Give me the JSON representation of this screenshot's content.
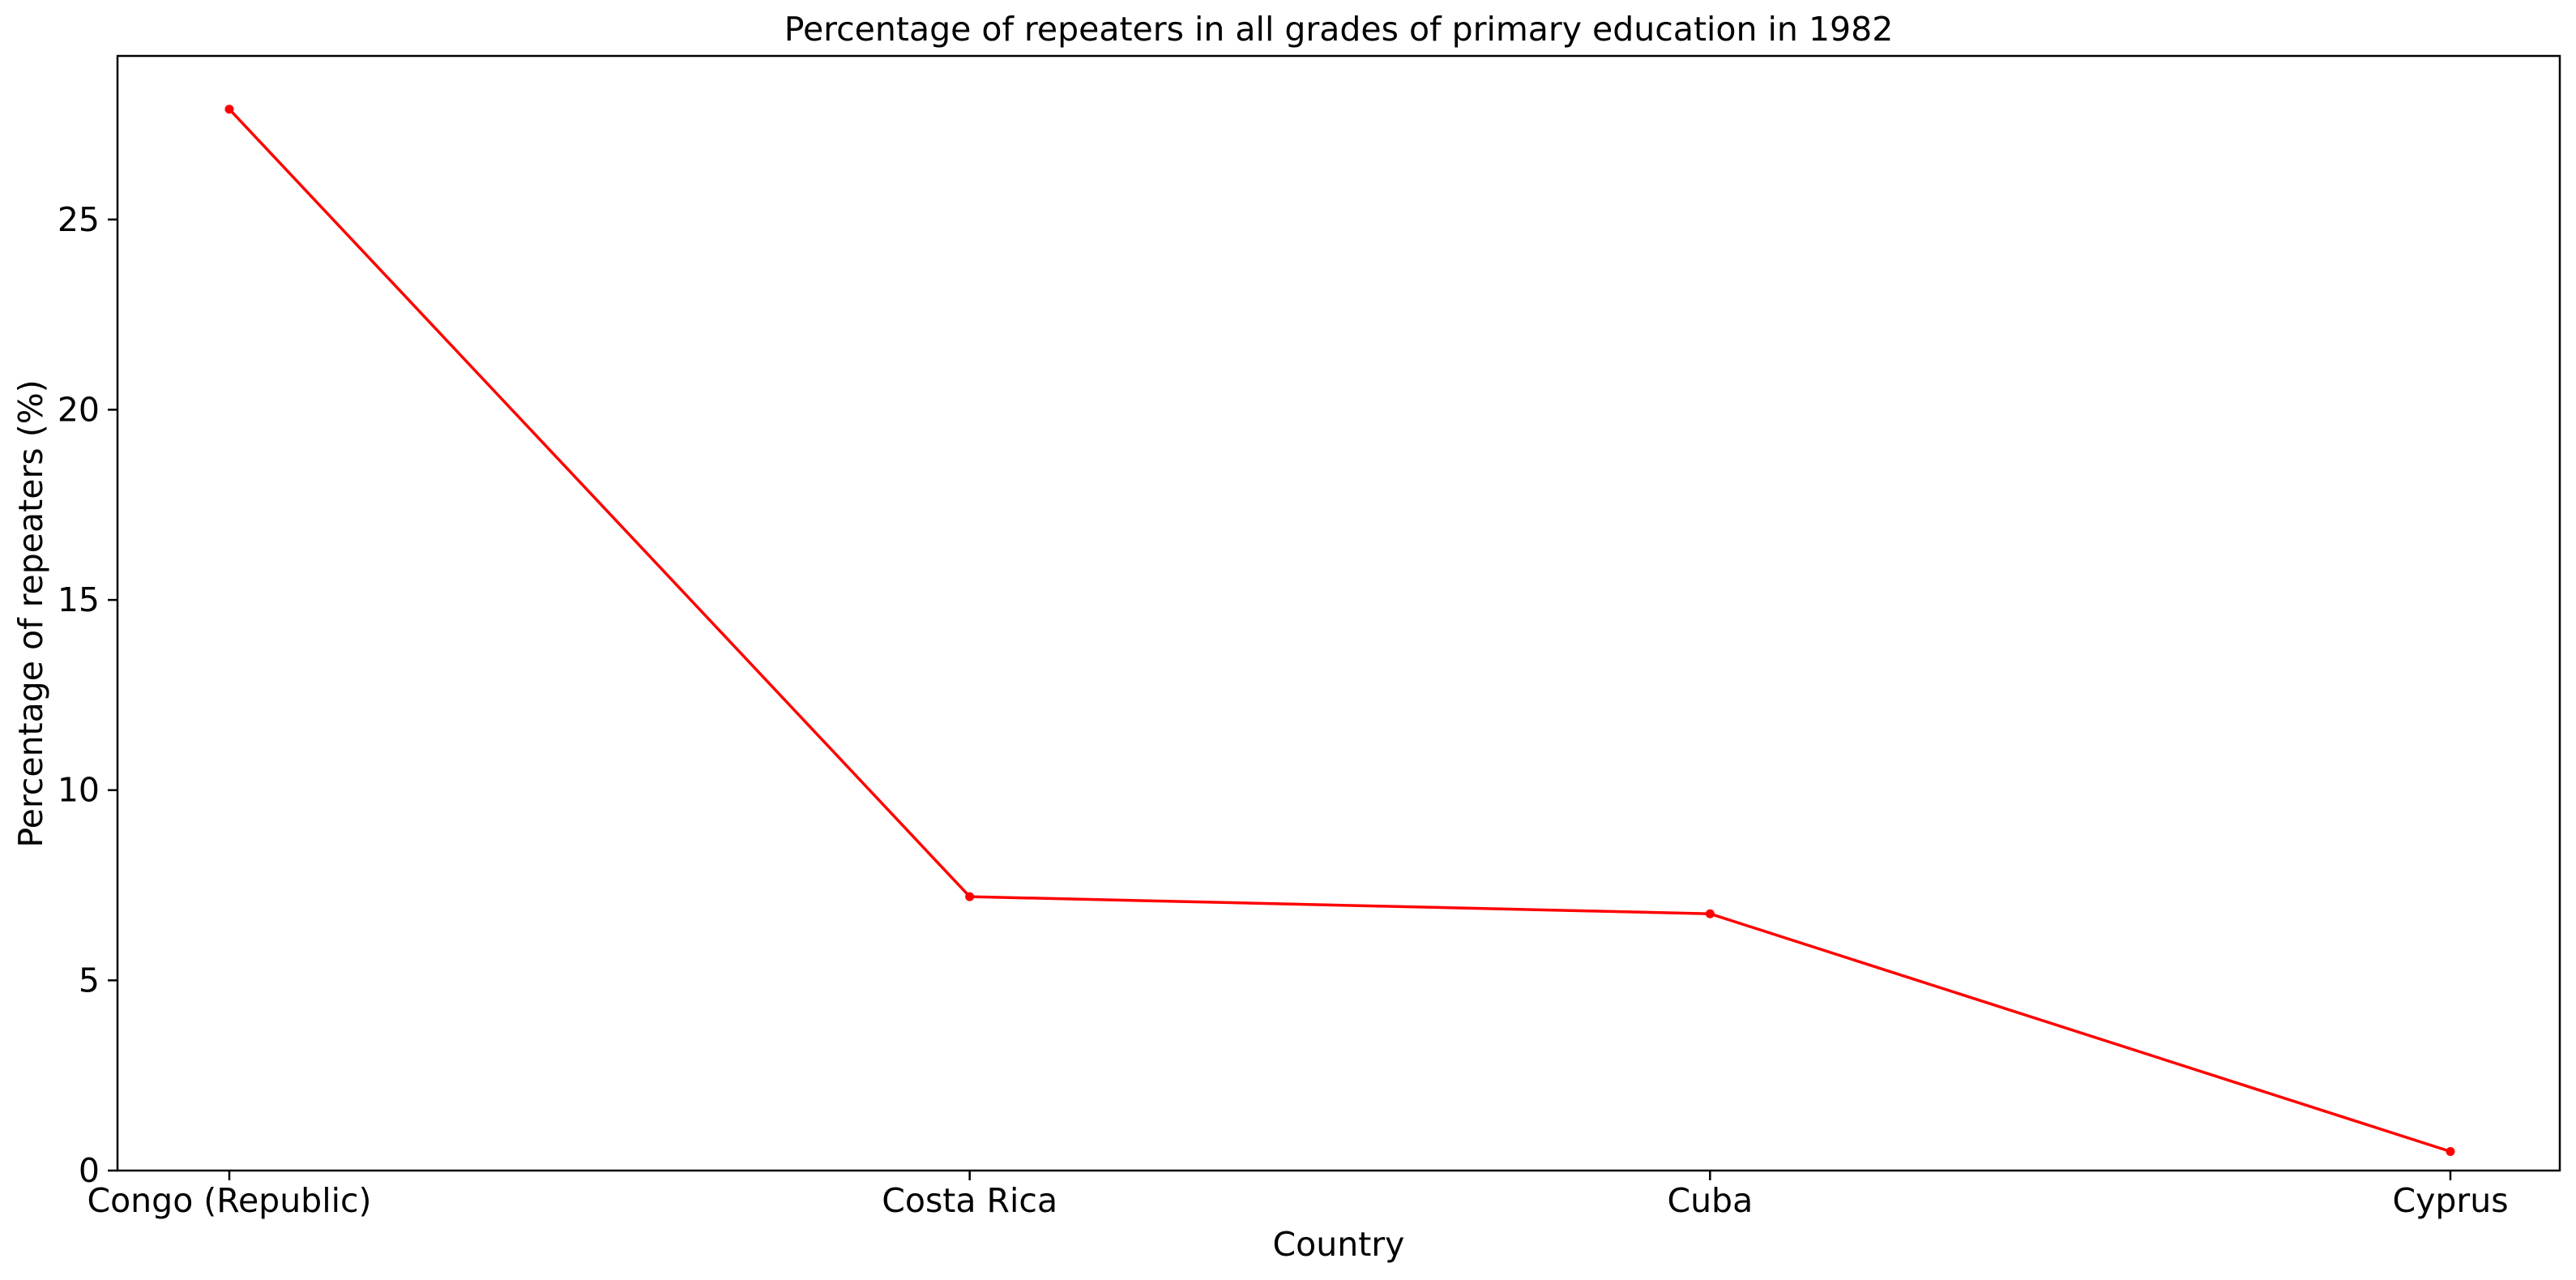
{
  "chart_data": {
    "type": "line",
    "title": "Percentage of repeaters in all grades of primary education in 1982",
    "xlabel": "Country",
    "ylabel": "Percentage of repeaters (%)",
    "categories": [
      "Congo (Republic)",
      "Costa Rica",
      "Cuba",
      "Cyprus"
    ],
    "series": [
      {
        "values": [
          27.9,
          7.2,
          6.75,
          0.5
        ],
        "color": "#ff0000",
        "marker": "circle"
      }
    ],
    "ylim": [
      0,
      29.3
    ],
    "yticks": [
      0,
      5,
      10,
      15,
      20,
      25
    ],
    "ytick_labels": [
      "0",
      "5",
      "10",
      "15",
      "20",
      "25"
    ],
    "grid": false,
    "legend": false
  }
}
